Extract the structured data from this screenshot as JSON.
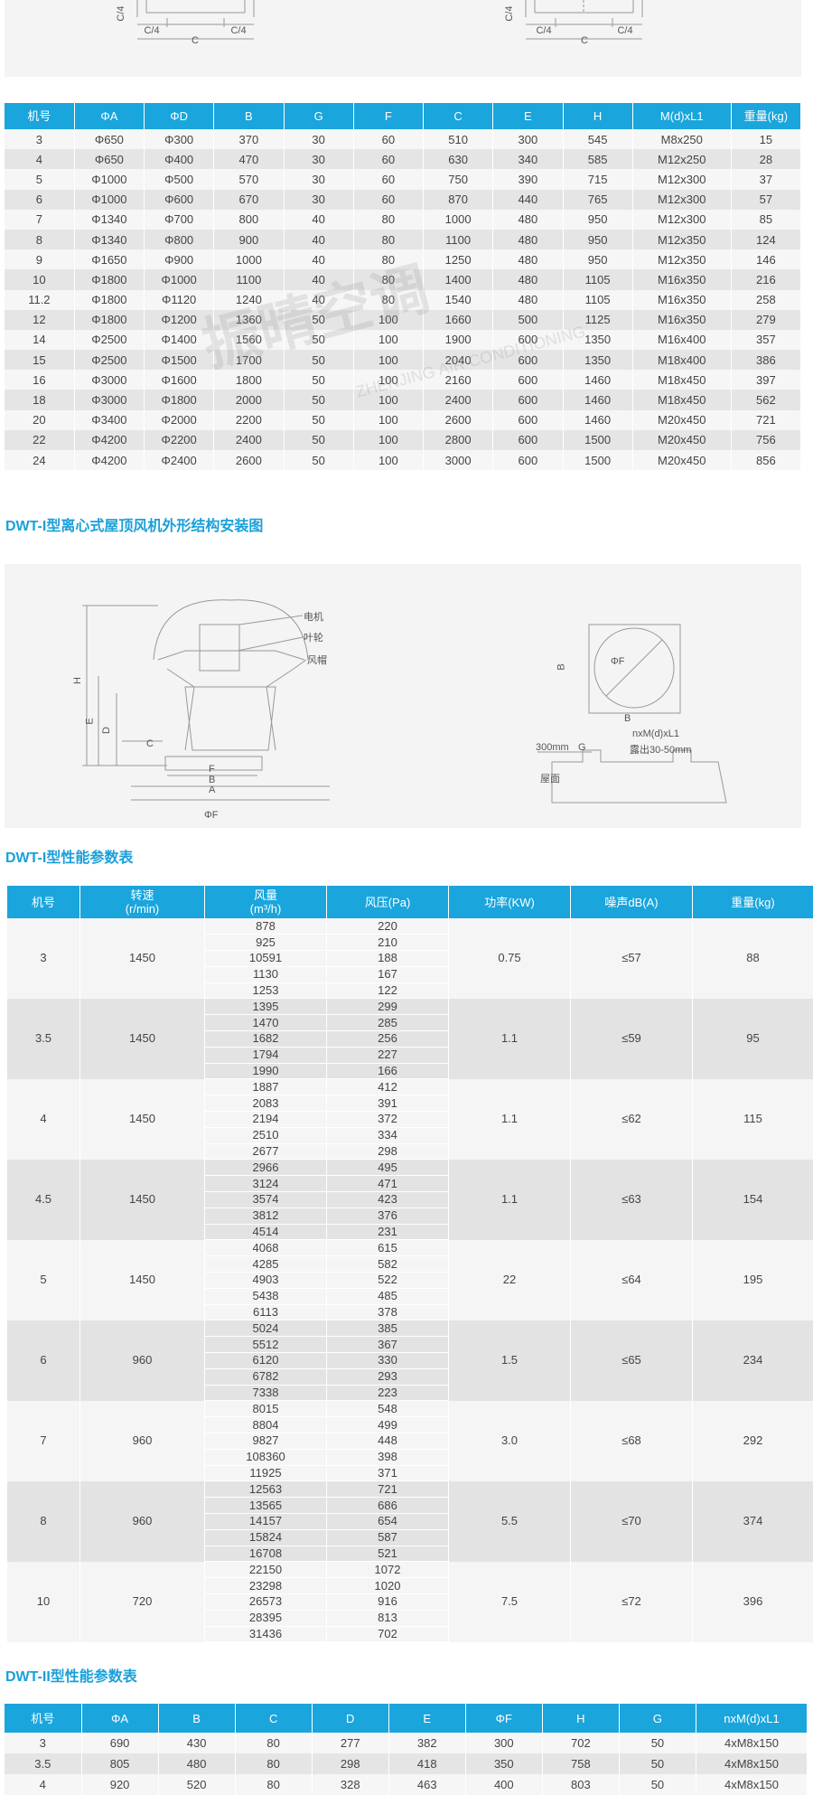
{
  "top_diagram": {
    "left": [
      "C/4",
      "C/4",
      "C",
      "C/4"
    ],
    "right": [
      "C/4",
      "C/4",
      "C",
      "C/4"
    ]
  },
  "table1": {
    "header": [
      "机号",
      "ΦA",
      "ΦD",
      "B",
      "G",
      "F",
      "C",
      "E",
      "H",
      "M(d)xL1",
      "重量(kg)"
    ],
    "rows": [
      [
        "3",
        "Φ650",
        "Φ300",
        "370",
        "30",
        "60",
        "510",
        "300",
        "545",
        "M8x250",
        "15"
      ],
      [
        "4",
        "Φ650",
        "Φ400",
        "470",
        "30",
        "60",
        "630",
        "340",
        "585",
        "M12x250",
        "28"
      ],
      [
        "5",
        "Φ1000",
        "Φ500",
        "570",
        "30",
        "60",
        "750",
        "390",
        "715",
        "M12x300",
        "37"
      ],
      [
        "6",
        "Φ1000",
        "Φ600",
        "670",
        "30",
        "60",
        "870",
        "440",
        "765",
        "M12x300",
        "57"
      ],
      [
        "7",
        "Φ1340",
        "Φ700",
        "800",
        "40",
        "80",
        "1000",
        "480",
        "950",
        "M12x300",
        "85"
      ],
      [
        "8",
        "Φ1340",
        "Φ800",
        "900",
        "40",
        "80",
        "1100",
        "480",
        "950",
        "M12x350",
        "124"
      ],
      [
        "9",
        "Φ1650",
        "Φ900",
        "1000",
        "40",
        "80",
        "1250",
        "480",
        "950",
        "M12x350",
        "146"
      ],
      [
        "10",
        "Φ1800",
        "Φ1000",
        "1100",
        "40",
        "80",
        "1400",
        "480",
        "1105",
        "M16x350",
        "216"
      ],
      [
        "11.2",
        "Φ1800",
        "Φ1120",
        "1240",
        "40",
        "80",
        "1540",
        "480",
        "1105",
        "M16x350",
        "258"
      ],
      [
        "12",
        "Φ1800",
        "Φ1200",
        "1360",
        "50",
        "100",
        "1660",
        "500",
        "1125",
        "M16x350",
        "279"
      ],
      [
        "14",
        "Φ2500",
        "Φ1400",
        "1560",
        "50",
        "100",
        "1900",
        "600",
        "1350",
        "M16x400",
        "357"
      ],
      [
        "15",
        "Φ2500",
        "Φ1500",
        "1700",
        "50",
        "100",
        "2040",
        "600",
        "1350",
        "M18x400",
        "386"
      ],
      [
        "16",
        "Φ3000",
        "Φ1600",
        "1800",
        "50",
        "100",
        "2160",
        "600",
        "1460",
        "M18x450",
        "397"
      ],
      [
        "18",
        "Φ3000",
        "Φ1800",
        "2000",
        "50",
        "100",
        "2400",
        "600",
        "1460",
        "M18x450",
        "562"
      ],
      [
        "20",
        "Φ3400",
        "Φ2000",
        "2200",
        "50",
        "100",
        "2600",
        "600",
        "1460",
        "M20x450",
        "721"
      ],
      [
        "22",
        "Φ4200",
        "Φ2200",
        "2400",
        "50",
        "100",
        "2800",
        "600",
        "1500",
        "M20x450",
        "756"
      ],
      [
        "24",
        "Φ4200",
        "Φ2400",
        "2600",
        "50",
        "100",
        "3000",
        "600",
        "1500",
        "M20x450",
        "856"
      ]
    ]
  },
  "watermark": {
    "brand": "振晴空调",
    "english": "ZHENJING AIR CONDITIONING"
  },
  "diagram": {
    "title": "DWT-I型离心式屋顶风机外形结构安装图",
    "parts": [
      "电机",
      "叶轮",
      "风帽"
    ],
    "dims": [
      "H",
      "E",
      "D",
      "C",
      "F",
      "B",
      "A",
      "ΦF"
    ],
    "plan": [
      "B",
      "ΦF",
      "B"
    ],
    "section": [
      "nxM(d)xL1",
      "露出30-50mm",
      "300mm",
      "G",
      "屋面"
    ]
  },
  "table2": {
    "title": "DWT-I型性能参数表",
    "header": [
      "机号",
      [
        "转速",
        "(r/min)"
      ],
      [
        "风量",
        "(m³/h)"
      ],
      "风压(Pa)",
      "功率(KW)",
      "噪声dB(A)",
      "重量(kg)"
    ],
    "groups": [
      {
        "no": "3",
        "speed": "1450",
        "flow": [
          "878",
          "925",
          "10591",
          "1130",
          "1253"
        ],
        "pressure": [
          "220",
          "210",
          "188",
          "167",
          "122"
        ],
        "power": "0.75",
        "noise": "≤57",
        "weight": "88"
      },
      {
        "no": "3.5",
        "speed": "1450",
        "flow": [
          "1395",
          "1470",
          "1682",
          "1794",
          "1990"
        ],
        "pressure": [
          "299",
          "285",
          "256",
          "227",
          "166"
        ],
        "power": "1.1",
        "noise": "≤59",
        "weight": "95"
      },
      {
        "no": "4",
        "speed": "1450",
        "flow": [
          "1887",
          "2083",
          "2194",
          "2510",
          "2677"
        ],
        "pressure": [
          "412",
          "391",
          "372",
          "334",
          "298"
        ],
        "power": "1.1",
        "noise": "≤62",
        "weight": "115"
      },
      {
        "no": "4.5",
        "speed": "1450",
        "flow": [
          "2966",
          "3124",
          "3574",
          "3812",
          "4514"
        ],
        "pressure": [
          "495",
          "471",
          "423",
          "376",
          "231"
        ],
        "power": "1.1",
        "noise": "≤63",
        "weight": "154"
      },
      {
        "no": "5",
        "speed": "1450",
        "flow": [
          "4068",
          "4285",
          "4903",
          "5438",
          "6113"
        ],
        "pressure": [
          "615",
          "582",
          "522",
          "485",
          "378"
        ],
        "power": "22",
        "noise": "≤64",
        "weight": "195"
      },
      {
        "no": "6",
        "speed": "960",
        "flow": [
          "5024",
          "5512",
          "6120",
          "6782",
          "7338"
        ],
        "pressure": [
          "385",
          "367",
          "330",
          "293",
          "223"
        ],
        "power": "1.5",
        "noise": "≤65",
        "weight": "234"
      },
      {
        "no": "7",
        "speed": "960",
        "flow": [
          "8015",
          "8804",
          "9827",
          "108360",
          "11925"
        ],
        "pressure": [
          "548",
          "499",
          "448",
          "398",
          "371"
        ],
        "power": "3.0",
        "noise": "≤68",
        "weight": "292"
      },
      {
        "no": "8",
        "speed": "960",
        "flow": [
          "12563",
          "13565",
          "14157",
          "15824",
          "16708"
        ],
        "pressure": [
          "721",
          "686",
          "654",
          "587",
          "521"
        ],
        "power": "5.5",
        "noise": "≤70",
        "weight": "374"
      },
      {
        "no": "10",
        "speed": "720",
        "flow": [
          "22150",
          "23298",
          "26573",
          "28395",
          "31436"
        ],
        "pressure": [
          "1072",
          "1020",
          "916",
          "813",
          "702"
        ],
        "power": "7.5",
        "noise": "≤72",
        "weight": "396"
      }
    ]
  },
  "table3": {
    "title": "DWT-II型性能参数表",
    "header": [
      "机号",
      "ΦA",
      "B",
      "C",
      "D",
      "E",
      "ΦF",
      "H",
      "G",
      "nxM(d)xL1"
    ],
    "rows": [
      [
        "3",
        "690",
        "430",
        "80",
        "277",
        "382",
        "300",
        "702",
        "50",
        "4xM8x150"
      ],
      [
        "3.5",
        "805",
        "480",
        "80",
        "298",
        "418",
        "350",
        "758",
        "50",
        "4xM8x150"
      ],
      [
        "4",
        "920",
        "520",
        "80",
        "328",
        "463",
        "400",
        "803",
        "50",
        "4xM8x150"
      ]
    ]
  }
}
